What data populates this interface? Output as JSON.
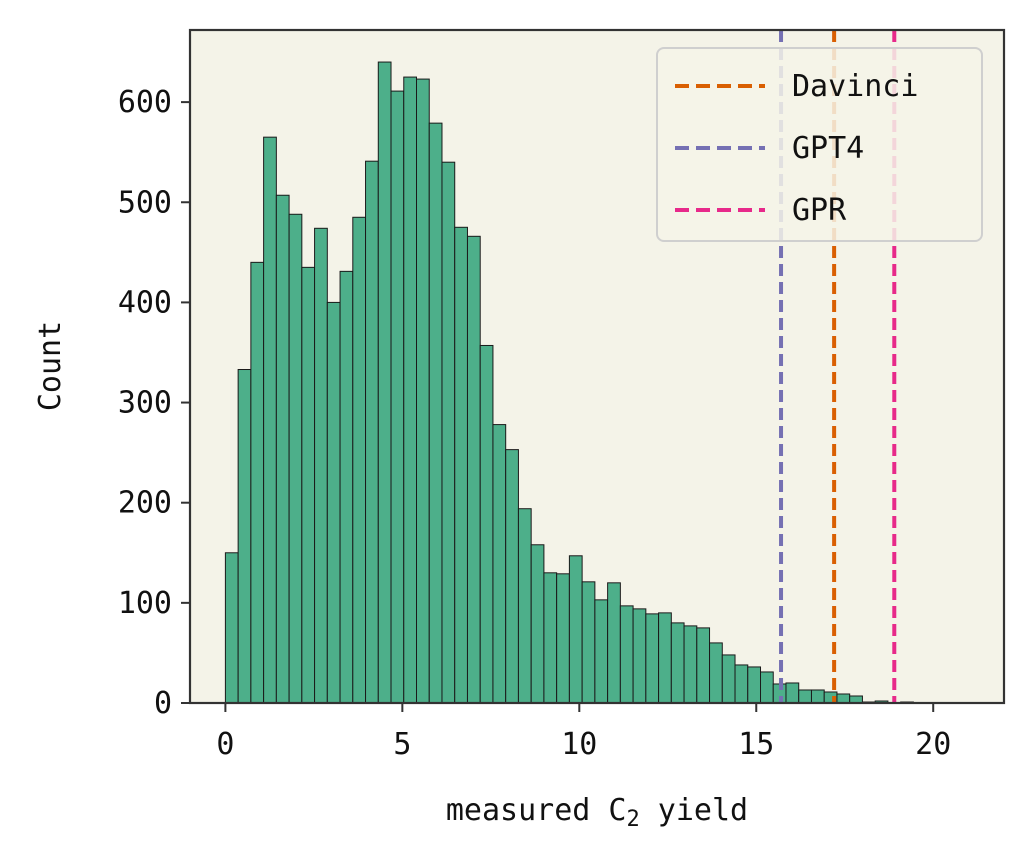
{
  "chart_data": {
    "type": "bar",
    "subtype": "histogram",
    "title": "",
    "xlabel": "measured C",
    "xlabel_subscript": "2",
    "xlabel_suffix": " yield",
    "ylabel": "Count",
    "xlim": [
      -1,
      22
    ],
    "ylim": [
      0,
      672
    ],
    "xticks": [
      0,
      5,
      10,
      15,
      20
    ],
    "yticks": [
      0,
      100,
      200,
      300,
      400,
      500,
      600
    ],
    "grid": false,
    "bin_start": 0.0,
    "bin_width": 0.36,
    "counts": [
      150,
      333,
      440,
      565,
      507,
      488,
      435,
      474,
      400,
      431,
      485,
      541,
      640,
      611,
      625,
      623,
      579,
      540,
      475,
      466,
      357,
      278,
      253,
      194,
      158,
      130,
      129,
      147,
      121,
      103,
      120,
      97,
      94,
      89,
      90,
      80,
      77,
      75,
      60,
      48,
      38,
      36,
      31,
      19,
      20,
      13,
      13,
      11,
      9,
      7,
      1,
      2,
      0,
      1
    ],
    "vlines": [
      {
        "name": "Davinci",
        "x": 17.2,
        "color": "#d95f02",
        "style": "dashed"
      },
      {
        "name": "GPT4",
        "x": 15.7,
        "color": "#7570b3",
        "style": "dashed"
      },
      {
        "name": "GPR",
        "x": 18.9,
        "color": "#e7298a",
        "style": "dashed"
      }
    ],
    "bar_color": "#4daf8a",
    "bar_edge_color": "#1a1a1a",
    "plot_background": "#f4f3e8",
    "legend_position": "top-right",
    "legend": [
      "Davinci",
      "GPT4",
      "GPR"
    ]
  }
}
